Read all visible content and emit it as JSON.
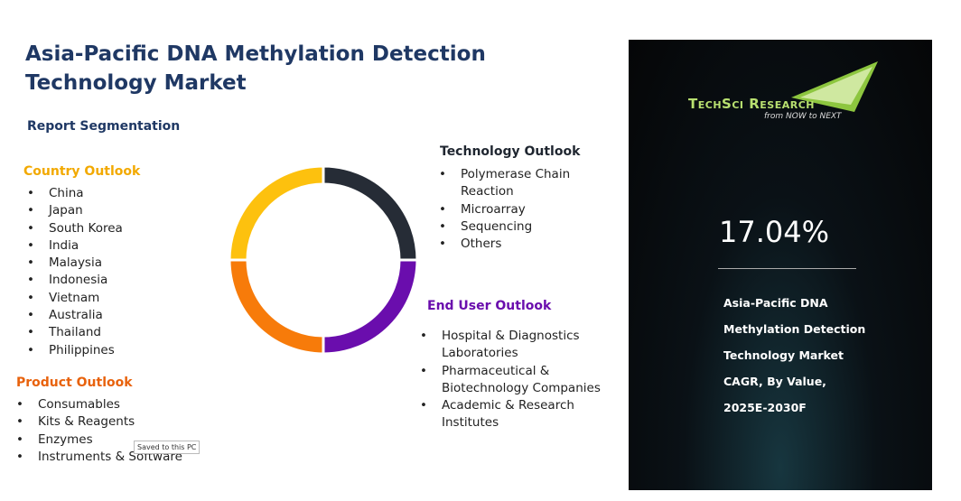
{
  "header": {
    "title": "Asia-Pacific DNA Methylation Detection Technology Market",
    "subtitle": "Report Segmentation"
  },
  "segments": {
    "country": {
      "title": "Country Outlook",
      "items": [
        "China",
        "Japan",
        "South Korea",
        "India",
        "Malaysia",
        "Indonesia",
        "Vietnam",
        "Australia",
        "Thailand",
        "Philippines"
      ]
    },
    "product": {
      "title": "Product Outlook",
      "items": [
        "Consumables",
        "Kits & Reagents",
        "Enzymes",
        "Instruments & Software"
      ]
    },
    "technology": {
      "title": "Technology Outlook",
      "items": [
        "Polymerase Chain Reaction",
        "Microarray",
        "Sequencing",
        "Others"
      ]
    },
    "end_user": {
      "title": "End User Outlook",
      "items": [
        "Hospital & Diagnostics Laboratories",
        "Pharmaceutical & Biotechnology Companies",
        "Academic & Research Institutes"
      ]
    }
  },
  "panel": {
    "logo": "TechSci Research",
    "tagline": "from NOW to NEXT",
    "cagr": "17.04%",
    "description": "Asia-Pacific DNA Methylation Detection Technology Market CAGR, By Value, 2025E-2030F"
  },
  "tooltip": "Saved to this PC"
}
